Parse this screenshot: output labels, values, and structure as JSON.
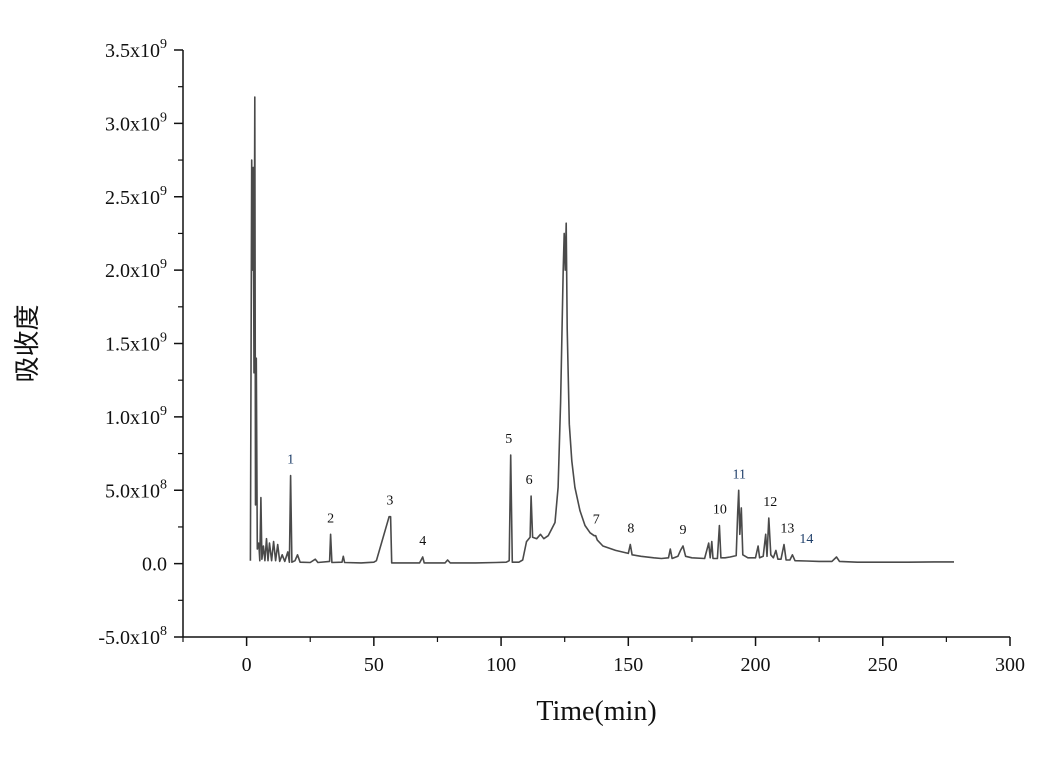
{
  "chart_data": {
    "type": "line",
    "title": "",
    "xlabel": "Time(min)",
    "ylabel": "吸收度",
    "xlim": [
      -25,
      300
    ],
    "ylim": [
      -500000000,
      3500000000
    ],
    "x_ticks": [
      0,
      50,
      100,
      150,
      200,
      250,
      300
    ],
    "x_tick_labels": [
      "0",
      "50",
      "100",
      "150",
      "200",
      "250",
      "300"
    ],
    "y_ticks": [
      -500000000,
      0,
      500000000,
      1000000000,
      1500000000,
      2000000000,
      2500000000,
      3000000000,
      3500000000
    ],
    "y_tick_labels": [
      {
        "mantissa": "-5.0x10",
        "exp": "8"
      },
      {
        "mantissa": "0.0",
        "exp": ""
      },
      {
        "mantissa": "5.0x10",
        "exp": "8"
      },
      {
        "mantissa": "1.0x10",
        "exp": "9"
      },
      {
        "mantissa": "1.5x10",
        "exp": "9"
      },
      {
        "mantissa": "2.0x10",
        "exp": "9"
      },
      {
        "mantissa": "2.5x10",
        "exp": "9"
      },
      {
        "mantissa": "3.0x10",
        "exp": "9"
      },
      {
        "mantissa": "3.5x10",
        "exp": "9"
      }
    ],
    "grid": false,
    "line_color": "#4a4a4a",
    "series": [
      {
        "values": [
          [
            1.5,
            20000000
          ],
          [
            2.0,
            2750000000
          ],
          [
            2.3,
            2000000000
          ],
          [
            2.6,
            2700000000
          ],
          [
            2.9,
            1300000000
          ],
          [
            3.2,
            3180000000
          ],
          [
            3.5,
            400000000
          ],
          [
            3.8,
            1400000000
          ],
          [
            4.2,
            100000000
          ],
          [
            4.8,
            140000000
          ],
          [
            5.2,
            20000000
          ],
          [
            5.6,
            450000000
          ],
          [
            6.0,
            30000000
          ],
          [
            6.6,
            120000000
          ],
          [
            7.2,
            20000000
          ],
          [
            7.8,
            170000000
          ],
          [
            8.4,
            20000000
          ],
          [
            9.0,
            140000000
          ],
          [
            9.8,
            20000000
          ],
          [
            10.6,
            150000000
          ],
          [
            11.4,
            20000000
          ],
          [
            12.2,
            130000000
          ],
          [
            13.0,
            15000000
          ],
          [
            14.0,
            60000000
          ],
          [
            15.0,
            15000000
          ],
          [
            16.2,
            80000000
          ],
          [
            16.8,
            10000000
          ],
          [
            17.3,
            600000000
          ],
          [
            17.8,
            10000000
          ],
          [
            19.0,
            20000000
          ],
          [
            20.0,
            60000000
          ],
          [
            21.0,
            10000000
          ],
          [
            25.0,
            8000000
          ],
          [
            27.0,
            30000000
          ],
          [
            28.0,
            8000000
          ],
          [
            32.6,
            15000000
          ],
          [
            33.0,
            200000000
          ],
          [
            33.5,
            8000000
          ],
          [
            37.5,
            10000000
          ],
          [
            38.0,
            50000000
          ],
          [
            38.5,
            8000000
          ],
          [
            45.0,
            5000000
          ],
          [
            50.0,
            10000000
          ],
          [
            51.0,
            20000000
          ],
          [
            56.0,
            320000000
          ],
          [
            56.6,
            320000000
          ],
          [
            57.0,
            5000000
          ],
          [
            62.0,
            5000000
          ],
          [
            68.0,
            5000000
          ],
          [
            69.2,
            45000000
          ],
          [
            69.8,
            5000000
          ],
          [
            78.0,
            5000000
          ],
          [
            79.0,
            25000000
          ],
          [
            80.0,
            5000000
          ],
          [
            90.0,
            5000000
          ],
          [
            98.0,
            8000000
          ],
          [
            102.0,
            10000000
          ],
          [
            103.2,
            20000000
          ],
          [
            103.8,
            740000000
          ],
          [
            104.4,
            10000000
          ],
          [
            107.0,
            10000000
          ],
          [
            108.5,
            25000000
          ],
          [
            110.0,
            150000000
          ],
          [
            111.4,
            180000000
          ],
          [
            111.8,
            460000000
          ],
          [
            112.4,
            180000000
          ],
          [
            114.0,
            170000000
          ],
          [
            115.5,
            200000000
          ],
          [
            116.8,
            170000000
          ],
          [
            118.5,
            190000000
          ],
          [
            120.0,
            240000000
          ],
          [
            121.2,
            280000000
          ],
          [
            122.4,
            520000000
          ],
          [
            123.4,
            1100000000
          ],
          [
            124.4,
            2000000000
          ],
          [
            124.8,
            2250000000
          ],
          [
            125.2,
            2000000000
          ],
          [
            125.6,
            2320000000
          ],
          [
            126.0,
            1600000000
          ],
          [
            126.8,
            950000000
          ],
          [
            127.8,
            700000000
          ],
          [
            129.0,
            520000000
          ],
          [
            131.0,
            360000000
          ],
          [
            133.0,
            260000000
          ],
          [
            135.0,
            210000000
          ],
          [
            136.6,
            190000000
          ],
          [
            137.2,
            190000000
          ],
          [
            137.8,
            160000000
          ],
          [
            140.0,
            120000000
          ],
          [
            145.0,
            90000000
          ],
          [
            150.0,
            70000000
          ],
          [
            150.8,
            130000000
          ],
          [
            151.5,
            60000000
          ],
          [
            155.0,
            50000000
          ],
          [
            160.0,
            40000000
          ],
          [
            163.0,
            35000000
          ],
          [
            165.8,
            40000000
          ],
          [
            166.5,
            100000000
          ],
          [
            167.2,
            35000000
          ],
          [
            169.5,
            50000000
          ],
          [
            170.5,
            90000000
          ],
          [
            171.5,
            120000000
          ],
          [
            172.5,
            50000000
          ],
          [
            175.0,
            40000000
          ],
          [
            180.0,
            35000000
          ],
          [
            181.6,
            140000000
          ],
          [
            182.2,
            40000000
          ],
          [
            182.8,
            150000000
          ],
          [
            183.3,
            35000000
          ],
          [
            185.0,
            35000000
          ],
          [
            185.8,
            260000000
          ],
          [
            186.4,
            40000000
          ],
          [
            188.0,
            40000000
          ],
          [
            190.0,
            45000000
          ],
          [
            192.4,
            55000000
          ],
          [
            193.0,
            350000000
          ],
          [
            193.4,
            500000000
          ],
          [
            193.8,
            200000000
          ],
          [
            194.4,
            380000000
          ],
          [
            195.0,
            60000000
          ],
          [
            197.0,
            40000000
          ],
          [
            200.0,
            40000000
          ],
          [
            201.0,
            120000000
          ],
          [
            201.6,
            40000000
          ],
          [
            203.0,
            50000000
          ],
          [
            204.0,
            200000000
          ],
          [
            204.5,
            50000000
          ],
          [
            205.2,
            310000000
          ],
          [
            206.0,
            60000000
          ],
          [
            207.0,
            40000000
          ],
          [
            208.0,
            90000000
          ],
          [
            208.8,
            30000000
          ],
          [
            210.0,
            30000000
          ],
          [
            211.2,
            130000000
          ],
          [
            212.0,
            25000000
          ],
          [
            213.5,
            25000000
          ],
          [
            214.5,
            60000000
          ],
          [
            215.5,
            20000000
          ],
          [
            220.0,
            18000000
          ],
          [
            225.0,
            15000000
          ],
          [
            230.0,
            15000000
          ],
          [
            231.8,
            45000000
          ],
          [
            233.0,
            15000000
          ],
          [
            240.0,
            10000000
          ],
          [
            250.0,
            10000000
          ],
          [
            260.0,
            10000000
          ],
          [
            270.0,
            12000000
          ],
          [
            278.0,
            12000000
          ]
        ]
      }
    ],
    "annotations": [
      {
        "text": "1",
        "x": 17.3,
        "y": 600000000,
        "color": "#1f3f6a"
      },
      {
        "text": "2",
        "x": 33.0,
        "y": 200000000,
        "color": "#111111"
      },
      {
        "text": "3",
        "x": 56.3,
        "y": 320000000,
        "color": "#111111"
      },
      {
        "text": "4",
        "x": 69.2,
        "y": 45000000,
        "color": "#111111"
      },
      {
        "text": "5",
        "x": 103.0,
        "y": 740000000,
        "color": "#111111"
      },
      {
        "text": "6",
        "x": 111.0,
        "y": 460000000,
        "color": "#111111"
      },
      {
        "text": "7",
        "x": 137.4,
        "y": 190000000,
        "color": "#111111"
      },
      {
        "text": "8",
        "x": 151.0,
        "y": 130000000,
        "color": "#111111"
      },
      {
        "text": "9",
        "x": 171.5,
        "y": 120000000,
        "color": "#111111"
      },
      {
        "text": "10",
        "x": 186.0,
        "y": 260000000,
        "color": "#111111"
      },
      {
        "text": "11",
        "x": 193.6,
        "y": 500000000,
        "color": "#1f3f6a"
      },
      {
        "text": "12",
        "x": 205.8,
        "y": 310000000,
        "color": "#111111"
      },
      {
        "text": "13",
        "x": 212.5,
        "y": 130000000,
        "color": "#111111"
      },
      {
        "text": "14",
        "x": 220.0,
        "y": 60000000,
        "color": "#1f3f6a"
      }
    ]
  }
}
